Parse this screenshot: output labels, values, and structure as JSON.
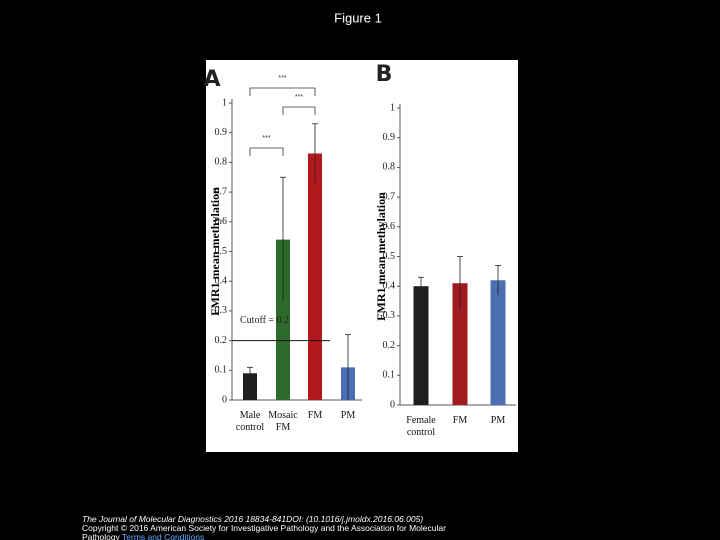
{
  "slide": {
    "title": "Figure 1",
    "citation": "The Journal of Molecular Diagnostics 2016 18834-841DOI: (10.1016/j.jmoldx.2016.06.005)",
    "copyright": "Copyright © 2016 American Society for Investigative Pathology and the Association for Molecular Pathology",
    "link": "Terms and Conditions"
  },
  "chart_data": [
    {
      "type": "bar",
      "panel": "A",
      "ylabel": "FMR1 mean methylation",
      "categories": [
        "Male control",
        "Mosaic FM",
        "FM",
        "PM"
      ],
      "values": [
        0.09,
        0.54,
        0.83,
        0.11
      ],
      "errors": [
        0.02,
        0.21,
        0.1,
        0.11
      ],
      "colors": [
        "#1e1e1e",
        "#2e6b2a",
        "#b3191c",
        "#4c6fb4"
      ],
      "ylim": [
        0,
        1
      ],
      "yticks": [
        0,
        0.1,
        0.2,
        0.3,
        0.4,
        0.5,
        0.6,
        0.7,
        0.8,
        0.9,
        1
      ],
      "cutoff": {
        "value": 0.2,
        "label": "Cutoff = 0.2"
      },
      "significance": [
        "***",
        "***",
        "***"
      ]
    },
    {
      "type": "bar",
      "panel": "B",
      "ylabel": "FMR1 mean methylation",
      "categories": [
        "Female control",
        "FM",
        "PM"
      ],
      "values": [
        0.4,
        0.41,
        0.42
      ],
      "errors": [
        0.03,
        0.09,
        0.05
      ],
      "colors": [
        "#1e1e1e",
        "#a01b1e",
        "#4c6fb4"
      ],
      "ylim": [
        0,
        1
      ],
      "yticks": [
        0,
        0.1,
        0.2,
        0.3,
        0.4,
        0.5,
        0.6,
        0.7,
        0.8,
        0.9,
        1
      ]
    }
  ]
}
